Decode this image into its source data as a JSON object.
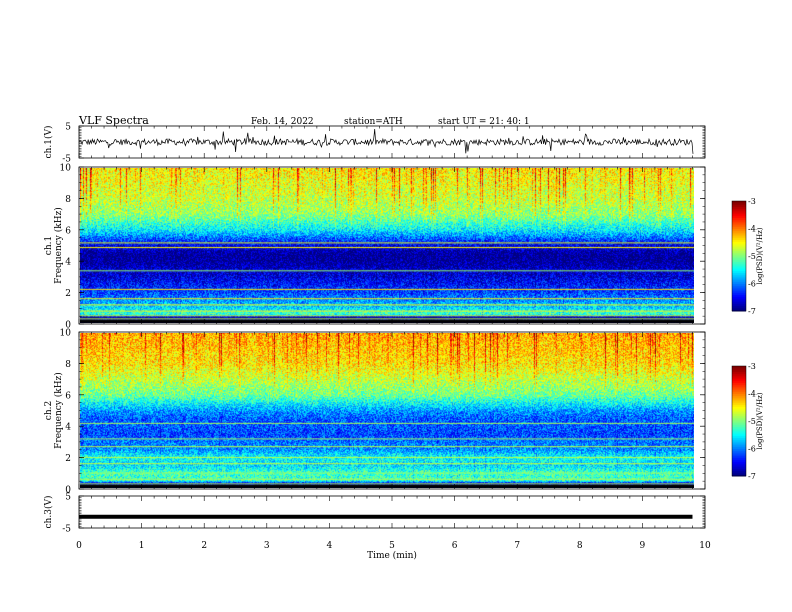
{
  "header": {
    "title": "VLF  Spectra",
    "date": "Feb. 14, 2022",
    "station": "station=ATH",
    "start": "start  UT  =   21: 40: 1"
  },
  "chart_data": [
    {
      "type": "line",
      "name": "ch1-waveform",
      "ylabel": "ch.1(V)",
      "xlim": [
        0,
        10
      ],
      "ylim": [
        -5,
        5
      ],
      "yticks": [
        "5",
        "-5"
      ],
      "baseline": 0,
      "noise_amplitude": 1,
      "spike_amplitude": 3.5
    },
    {
      "type": "heatmap",
      "name": "ch1-spectrogram",
      "ylabel": "ch.1\nFrequency  (kHz)",
      "xlim": [
        0,
        10
      ],
      "ylim": [
        0,
        10
      ],
      "yticks": [
        "0",
        "2",
        "4",
        "6",
        "8",
        "10"
      ],
      "colorbar": {
        "label": "log(PSD)(V²/Hz)",
        "range": [
          -7,
          -3
        ],
        "ticks": [
          "-3",
          "-4",
          "-5",
          "-6",
          "-7"
        ]
      },
      "profile": [
        {
          "f": 0.0,
          "v": -6.5
        },
        {
          "f": 0.4,
          "v": -6.9
        },
        {
          "f": 0.6,
          "v": -5.2
        },
        {
          "f": 1.0,
          "v": -5.6
        },
        {
          "f": 1.5,
          "v": -5.9
        },
        {
          "f": 2.0,
          "v": -6.2
        },
        {
          "f": 2.5,
          "v": -6.4
        },
        {
          "f": 3.0,
          "v": -6.6
        },
        {
          "f": 3.5,
          "v": -6.7
        },
        {
          "f": 4.0,
          "v": -6.9
        },
        {
          "f": 4.5,
          "v": -6.9
        },
        {
          "f": 5.0,
          "v": -6.6
        },
        {
          "f": 5.5,
          "v": -6.1
        },
        {
          "f": 6.0,
          "v": -5.6
        },
        {
          "f": 6.5,
          "v": -5.3
        },
        {
          "f": 7.0,
          "v": -5.0
        },
        {
          "f": 8.0,
          "v": -4.8
        },
        {
          "f": 9.0,
          "v": -4.7
        },
        {
          "f": 10.0,
          "v": -4.6
        }
      ],
      "lines_khz": [
        0.3,
        0.5,
        0.8,
        1.2,
        1.6,
        2.2,
        3.4,
        4.9,
        5.2
      ]
    },
    {
      "type": "heatmap",
      "name": "ch2-spectrogram",
      "ylabel": "ch.2\nFrequency  (kHz)",
      "xlim": [
        0,
        10
      ],
      "ylim": [
        0,
        10
      ],
      "yticks": [
        "0",
        "2",
        "4",
        "6",
        "8",
        "10"
      ],
      "colorbar": {
        "label": "log(PSD)(V²/Hz)",
        "range": [
          -7,
          -3
        ],
        "ticks": [
          "-3",
          "-4",
          "-5",
          "-6",
          "-7"
        ]
      },
      "profile": [
        {
          "f": 0.0,
          "v": -6.3
        },
        {
          "f": 0.3,
          "v": -6.8
        },
        {
          "f": 0.5,
          "v": -5.3
        },
        {
          "f": 1.0,
          "v": -5.2
        },
        {
          "f": 1.5,
          "v": -5.6
        },
        {
          "f": 2.0,
          "v": -5.4
        },
        {
          "f": 2.5,
          "v": -5.9
        },
        {
          "f": 3.0,
          "v": -6.0
        },
        {
          "f": 3.5,
          "v": -6.2
        },
        {
          "f": 4.0,
          "v": -6.1
        },
        {
          "f": 4.5,
          "v": -6.1
        },
        {
          "f": 5.0,
          "v": -5.9
        },
        {
          "f": 5.5,
          "v": -5.5
        },
        {
          "f": 6.0,
          "v": -5.1
        },
        {
          "f": 7.0,
          "v": -4.8
        },
        {
          "f": 8.0,
          "v": -4.5
        },
        {
          "f": 9.0,
          "v": -4.4
        },
        {
          "f": 10.0,
          "v": -4.3
        }
      ],
      "lines_khz": [
        0.3,
        0.6,
        1.0,
        1.6,
        2.0,
        2.7,
        3.2,
        4.2
      ]
    },
    {
      "type": "line",
      "name": "ch3-waveform",
      "ylabel": "ch.3(V)",
      "xlabel": "Time  (min)",
      "xlim": [
        0,
        10
      ],
      "ylim": [
        -5,
        5
      ],
      "yticks": [
        "5",
        "-5"
      ],
      "xticks": [
        "0",
        "1",
        "2",
        "3",
        "4",
        "5",
        "6",
        "7",
        "8",
        "9",
        "10"
      ],
      "baseline": -1.5,
      "data_end_min": 9.8
    }
  ]
}
